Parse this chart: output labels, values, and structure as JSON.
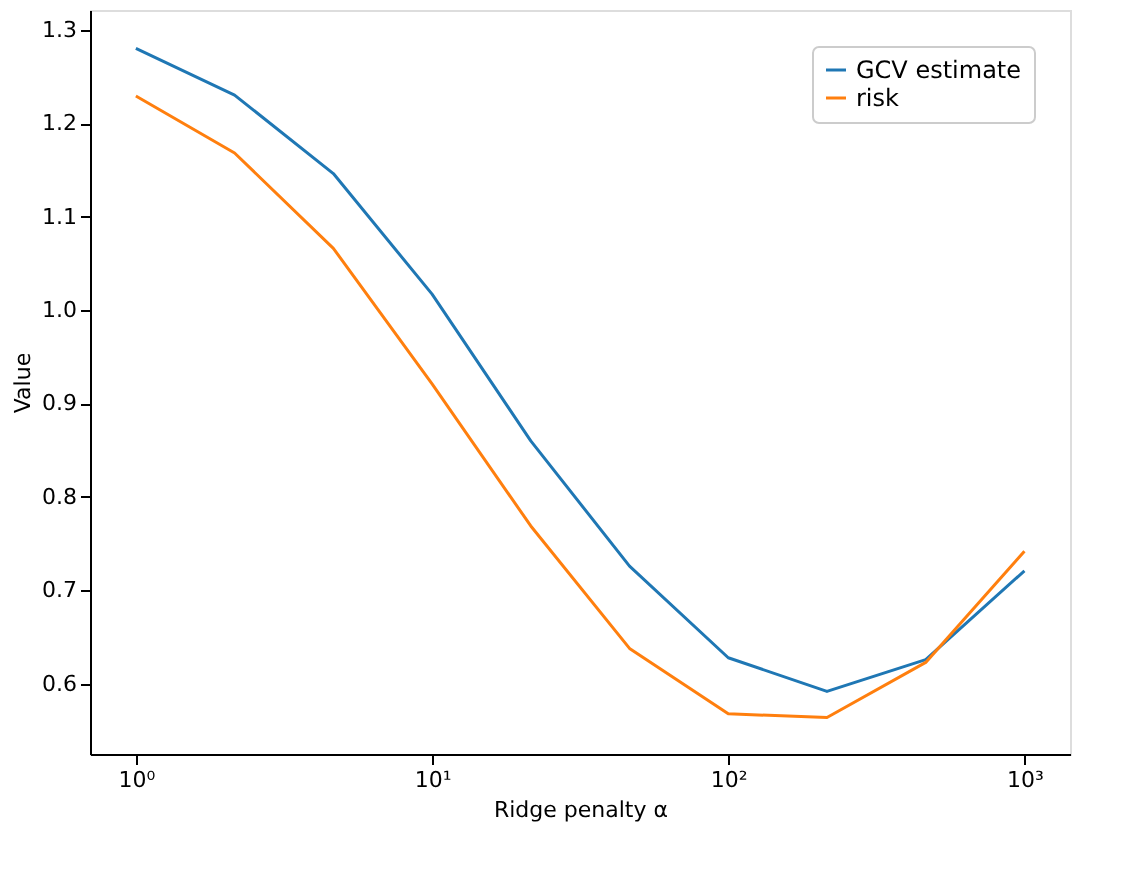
{
  "chart_data": {
    "type": "line",
    "xlabel": "Ridge penalty α",
    "ylabel": "Value",
    "x": [
      1,
      2.154,
      4.642,
      10,
      21.54,
      46.42,
      100,
      215.4,
      464.2,
      1000
    ],
    "series": [
      {
        "name": "GCV estimate",
        "color": "#1f77b4",
        "values": [
          1.28,
          1.23,
          1.146,
          1.017,
          0.86,
          0.726,
          0.628,
          0.592,
          0.626,
          0.721
        ]
      },
      {
        "name": "risk",
        "color": "#ff7f0e",
        "values": [
          1.229,
          1.168,
          1.066,
          0.921,
          0.769,
          0.638,
          0.568,
          0.564,
          0.623,
          0.742
        ]
      }
    ],
    "log": "x",
    "xlim": [
      0.7,
      1425
    ],
    "xticks": [
      {
        "value": 1,
        "label": "10⁰"
      },
      {
        "value": 10,
        "label": "10¹"
      },
      {
        "value": 100,
        "label": "10²"
      },
      {
        "value": 1000,
        "label": "10³"
      }
    ],
    "ylim": [
      0.525,
      1.321
    ],
    "yticks": [
      0.6,
      0.7,
      0.8,
      0.9,
      {
        "value": 1,
        "label": "1.0"
      },
      1.1,
      1.2,
      1.3
    ],
    "grid": false,
    "legend": "top right",
    "marker": "none",
    "line_style": "solid"
  }
}
